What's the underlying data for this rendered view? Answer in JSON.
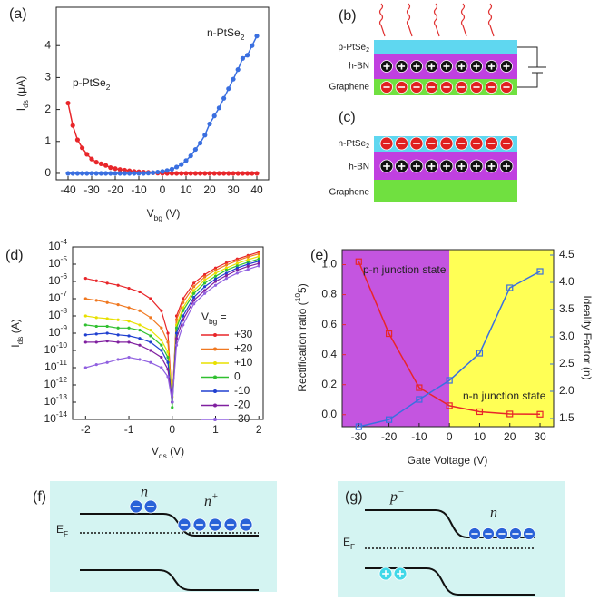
{
  "chart_data": [
    {
      "type": "line",
      "label": "(a)",
      "x_label": "Vbg (V)",
      "y_label": "Ids (μA)",
      "x": [
        -40,
        -38,
        -36,
        -34,
        -32,
        -30,
        -28,
        -26,
        -24,
        -22,
        -20,
        -18,
        -16,
        -14,
        -12,
        -10,
        -8,
        -6,
        -4,
        -2,
        0,
        2,
        4,
        6,
        8,
        10,
        12,
        14,
        16,
        18,
        20,
        22,
        24,
        26,
        28,
        30,
        32,
        34,
        36,
        38,
        40
      ],
      "series": [
        {
          "name": "p-PtSe2",
          "color": "#e8262a",
          "values": [
            2.2,
            1.5,
            1.05,
            0.8,
            0.6,
            0.45,
            0.35,
            0.3,
            0.25,
            0.18,
            0.15,
            0.12,
            0.1,
            0.08,
            0.06,
            0.05,
            0.04,
            0.03,
            0.02,
            0.01,
            0,
            0,
            0,
            0,
            0,
            0,
            0,
            0,
            0,
            0,
            0,
            0,
            0,
            0,
            0,
            0,
            0,
            0,
            0,
            0,
            0
          ]
        },
        {
          "name": "n-PtSe2",
          "color": "#3a6fe0",
          "values": [
            0,
            0,
            0,
            0,
            0,
            0,
            0,
            0,
            0,
            0,
            0,
            0,
            0,
            0,
            0,
            0,
            0,
            0.01,
            0.02,
            0.04,
            0.06,
            0.09,
            0.13,
            0.2,
            0.28,
            0.4,
            0.55,
            0.75,
            0.95,
            1.2,
            1.55,
            1.8,
            2.05,
            2.35,
            2.65,
            2.95,
            3.25,
            3.6,
            3.7,
            4.0,
            4.3
          ]
        }
      ],
      "xlim": [
        -45,
        45
      ],
      "xticks": [
        -40,
        -30,
        -20,
        -10,
        0,
        10,
        20,
        30,
        40
      ],
      "ylim": [
        -0.2,
        5.2
      ],
      "yticks": [
        0,
        1,
        2,
        3,
        4
      ]
    },
    {
      "type": "line",
      "label": "(d)",
      "x_label": "Vds (V)",
      "y_label": "Ids (A)",
      "legend_title": "Vbg =",
      "log_y": true,
      "x": [
        -2,
        -1.75,
        -1.5,
        -1.25,
        -1,
        -0.75,
        -0.5,
        -0.25,
        -0.1,
        0,
        0.1,
        0.25,
        0.5,
        0.75,
        1,
        1.25,
        1.5,
        1.75,
        2
      ],
      "series": [
        {
          "name": "+30",
          "color": "#e8262a",
          "values": [
            1.5e-06,
            1.1e-06,
            8e-07,
            6e-07,
            4e-07,
            2.5e-07,
            1e-07,
            2e-08,
            1e-09,
            1e-13,
            1e-08,
            1e-07,
            8e-07,
            2.5e-06,
            6e-06,
            1.2e-05,
            2e-05,
            3.2e-05,
            5e-05
          ]
        },
        {
          "name": "+20",
          "color": "#f07820",
          "values": [
            1e-07,
            8e-08,
            6e-08,
            4.5e-08,
            3e-08,
            2e-08,
            8e-09,
            2e-09,
            3e-10,
            1e-13,
            6e-09,
            6e-08,
            5e-07,
            1.8e-06,
            4.5e-06,
            9e-06,
            1.6e-05,
            2.6e-05,
            4e-05
          ]
        },
        {
          "name": "+10",
          "color": "#e8e000",
          "values": [
            1e-08,
            8e-09,
            7e-09,
            6e-09,
            5e-09,
            3e-09,
            1.5e-09,
            4e-10,
            8e-11,
            2e-13,
            3e-09,
            3e-08,
            3e-07,
            1.2e-06,
            3e-06,
            6e-06,
            1.1e-05,
            1.8e-05,
            2.8e-05
          ]
        },
        {
          "name": "0",
          "color": "#30c030",
          "values": [
            3e-09,
            2.5e-09,
            2.5e-09,
            2e-09,
            2e-09,
            1.5e-09,
            7e-10,
            2e-10,
            4e-11,
            5e-14,
            2e-09,
            2e-08,
            2e-07,
            8e-07,
            2e-06,
            4.5e-06,
            8e-06,
            1.3e-05,
            2e-05
          ]
        },
        {
          "name": "-10",
          "color": "#2040d0",
          "values": [
            8e-10,
            9e-10,
            1e-09,
            8e-10,
            7e-10,
            5e-10,
            3e-10,
            1e-10,
            2e-11,
            1e-13,
            1e-09,
            1e-08,
            1.2e-07,
            5e-07,
            1.4e-06,
            3e-06,
            6e-06,
            1e-05,
            1.5e-05
          ]
        },
        {
          "name": "-20",
          "color": "#8020a0",
          "values": [
            3e-10,
            3e-10,
            3.5e-10,
            3e-10,
            3e-10,
            2e-10,
            1e-10,
            4e-11,
            8e-12,
            1e-13,
            5e-10,
            6e-09,
            8e-08,
            3e-07,
            1e-06,
            2.2e-06,
            4.5e-06,
            7.5e-06,
            1.1e-05
          ]
        },
        {
          "name": "-30",
          "color": "#9060e0",
          "values": [
            1e-11,
            1.5e-11,
            2e-11,
            3e-11,
            4e-11,
            3e-11,
            2e-11,
            1e-11,
            3e-12,
            1e-13,
            2e-10,
            3e-09,
            5e-08,
            2e-07,
            6e-07,
            1.5e-06,
            3e-06,
            5e-06,
            8e-06
          ]
        }
      ],
      "xlim": [
        -2.3,
        2.1
      ],
      "xticks": [
        -2,
        -1,
        0,
        1,
        2
      ],
      "ylim": [
        1e-14,
        0.0001
      ],
      "yticks": [
        {
          "value": 0.0001,
          "label": "10-4"
        },
        {
          "value": 1e-05,
          "label": "10-5"
        },
        {
          "value": 1e-06,
          "label": "10-6"
        },
        {
          "value": 1e-07,
          "label": "10-7"
        },
        {
          "value": 1e-08,
          "label": "10-8"
        },
        {
          "value": 1e-09,
          "label": "10-9"
        },
        {
          "value": 1e-10,
          "label": "10-10"
        },
        {
          "value": 1e-11,
          "label": "10-11"
        },
        {
          "value": 1e-12,
          "label": "10-12"
        },
        {
          "value": 1e-13,
          "label": "10-13"
        },
        {
          "value": 1e-14,
          "label": "10-14"
        }
      ]
    },
    {
      "type": "line",
      "label": "(e)",
      "x_label": "Gate Voltage (V)",
      "y_label": "Rectification ratio (105)",
      "y2_label": "Ideality Factor (n)",
      "annotations": [
        "p-n junction state",
        "n-n junction state"
      ],
      "region_colors": [
        "#c455e0",
        "#ffff55"
      ],
      "x": [
        -30,
        -20,
        -10,
        0,
        10,
        20,
        30
      ],
      "series": [
        {
          "color": "#e8262a",
          "values": [
            1.02,
            0.54,
            0.18,
            0.06,
            0.02,
            0.005,
            0.003
          ]
        },
        {
          "color": "#3a6fe0",
          "axis": "y2",
          "values": [
            1.35,
            1.48,
            1.85,
            2.2,
            2.7,
            3.9,
            4.2
          ]
        }
      ],
      "xlim": [
        -35.5,
        34.5
      ],
      "xticks": [
        -30,
        -20,
        -10,
        0,
        10,
        20,
        30
      ],
      "ylim": [
        -0.08,
        1.1
      ],
      "yticks": [
        {
          "value": 0,
          "label": "0.0"
        },
        {
          "value": 0.2,
          "label": "0.2"
        },
        {
          "value": 0.4,
          "label": "0.4"
        },
        {
          "value": 0.6,
          "label": "0.6"
        },
        {
          "value": 0.8,
          "label": "0.8"
        },
        {
          "value": 1,
          "label": "1.0"
        }
      ],
      "y2lim": [
        1.35,
        4.6
      ],
      "y2ticks": [
        {
          "value": 1.5,
          "label": "1.5"
        },
        {
          "value": 2,
          "label": "2.0"
        },
        {
          "value": 2.5,
          "label": "2.5"
        },
        {
          "value": 3,
          "label": "3.0"
        },
        {
          "value": 3.5,
          "label": "3.5"
        },
        {
          "value": 4,
          "label": "4.0"
        },
        {
          "value": 4.5,
          "label": "4.5"
        }
      ]
    }
  ],
  "diagrams": {
    "b": {
      "label": "(b)",
      "layers": [
        "p-PtSe2",
        "h-BN",
        "Graphene"
      ]
    },
    "c": {
      "label": "(c)",
      "layers": [
        "n-PtSe2",
        "h-BN",
        "Graphene"
      ]
    },
    "f": {
      "label": "(f)",
      "left": "n",
      "right": "n+",
      "fermi": "EF"
    },
    "g": {
      "label": "(g)",
      "left": "p−",
      "right": "n",
      "fermi": "EF"
    }
  }
}
